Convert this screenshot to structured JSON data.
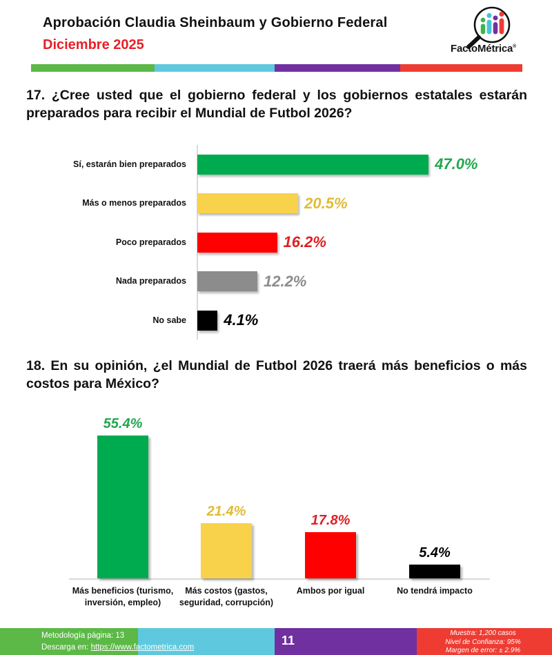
{
  "header": {
    "title": "Aprobación Claudia Sheinbaum y Gobierno Federal",
    "subtitle": "Diciembre 2025",
    "logo_text": "FactoMétrica",
    "logo_reg": "®"
  },
  "brand_colors": {
    "green": "#5cb847",
    "cyan": "#5ec9de",
    "purple": "#7030a0",
    "red": "#ee3c33"
  },
  "chart_data": [
    {
      "type": "bar",
      "orientation": "horizontal",
      "title": "17. ¿Cree usted que el gobierno federal y los gobiernos estatales estarán preparados para recibir el Mundial de Futbol 2026?",
      "categories": [
        "Sí, estarán bien preparados",
        "Más o menos preparados",
        "Poco preparados",
        "Nada preparados",
        "No sabe"
      ],
      "values": [
        47.0,
        20.5,
        16.2,
        12.2,
        4.1
      ],
      "value_labels": [
        "47.0%",
        "20.5%",
        "16.2%",
        "12.2%",
        "4.1%"
      ],
      "bar_colors": [
        "#00ab4f",
        "#f8d24b",
        "#fe0000",
        "#8c8c8c",
        "#000000"
      ],
      "label_colors": [
        "#21a84f",
        "#e0bb35",
        "#dd2025",
        "#8c8c8c",
        "#000000"
      ],
      "xlim": [
        0,
        52
      ],
      "grid": false,
      "legend": false
    },
    {
      "type": "bar",
      "orientation": "vertical",
      "title": "18. En su opinión, ¿el Mundial de Futbol 2026 traerá más beneficios o más costos para México?",
      "categories": [
        "Más beneficios (turismo, inversión, empleo)",
        "Más costos (gastos, seguridad, corrupción)",
        "Ambos por igual",
        "No tendrá impacto"
      ],
      "values": [
        55.4,
        21.4,
        17.8,
        5.4
      ],
      "value_labels": [
        "55.4%",
        "21.4%",
        "17.8%",
        "5.4%"
      ],
      "bar_colors": [
        "#00ab4f",
        "#f8d24b",
        "#fe0000",
        "#000000"
      ],
      "label_colors": [
        "#21a84f",
        "#e0bb35",
        "#dd2025",
        "#000000"
      ],
      "ylim": [
        0,
        62
      ],
      "grid": false,
      "legend": false
    }
  ],
  "footer": {
    "methodology": "Metodología página: 13",
    "download_prefix": "Descarga en: ",
    "download_link": "https://www.factometrica.com",
    "page_number": "11",
    "stats": [
      "Muestra: 1,200 casos",
      "Nivel de Confianza: 95%",
      "Margen de error: ± 2.9%"
    ]
  }
}
